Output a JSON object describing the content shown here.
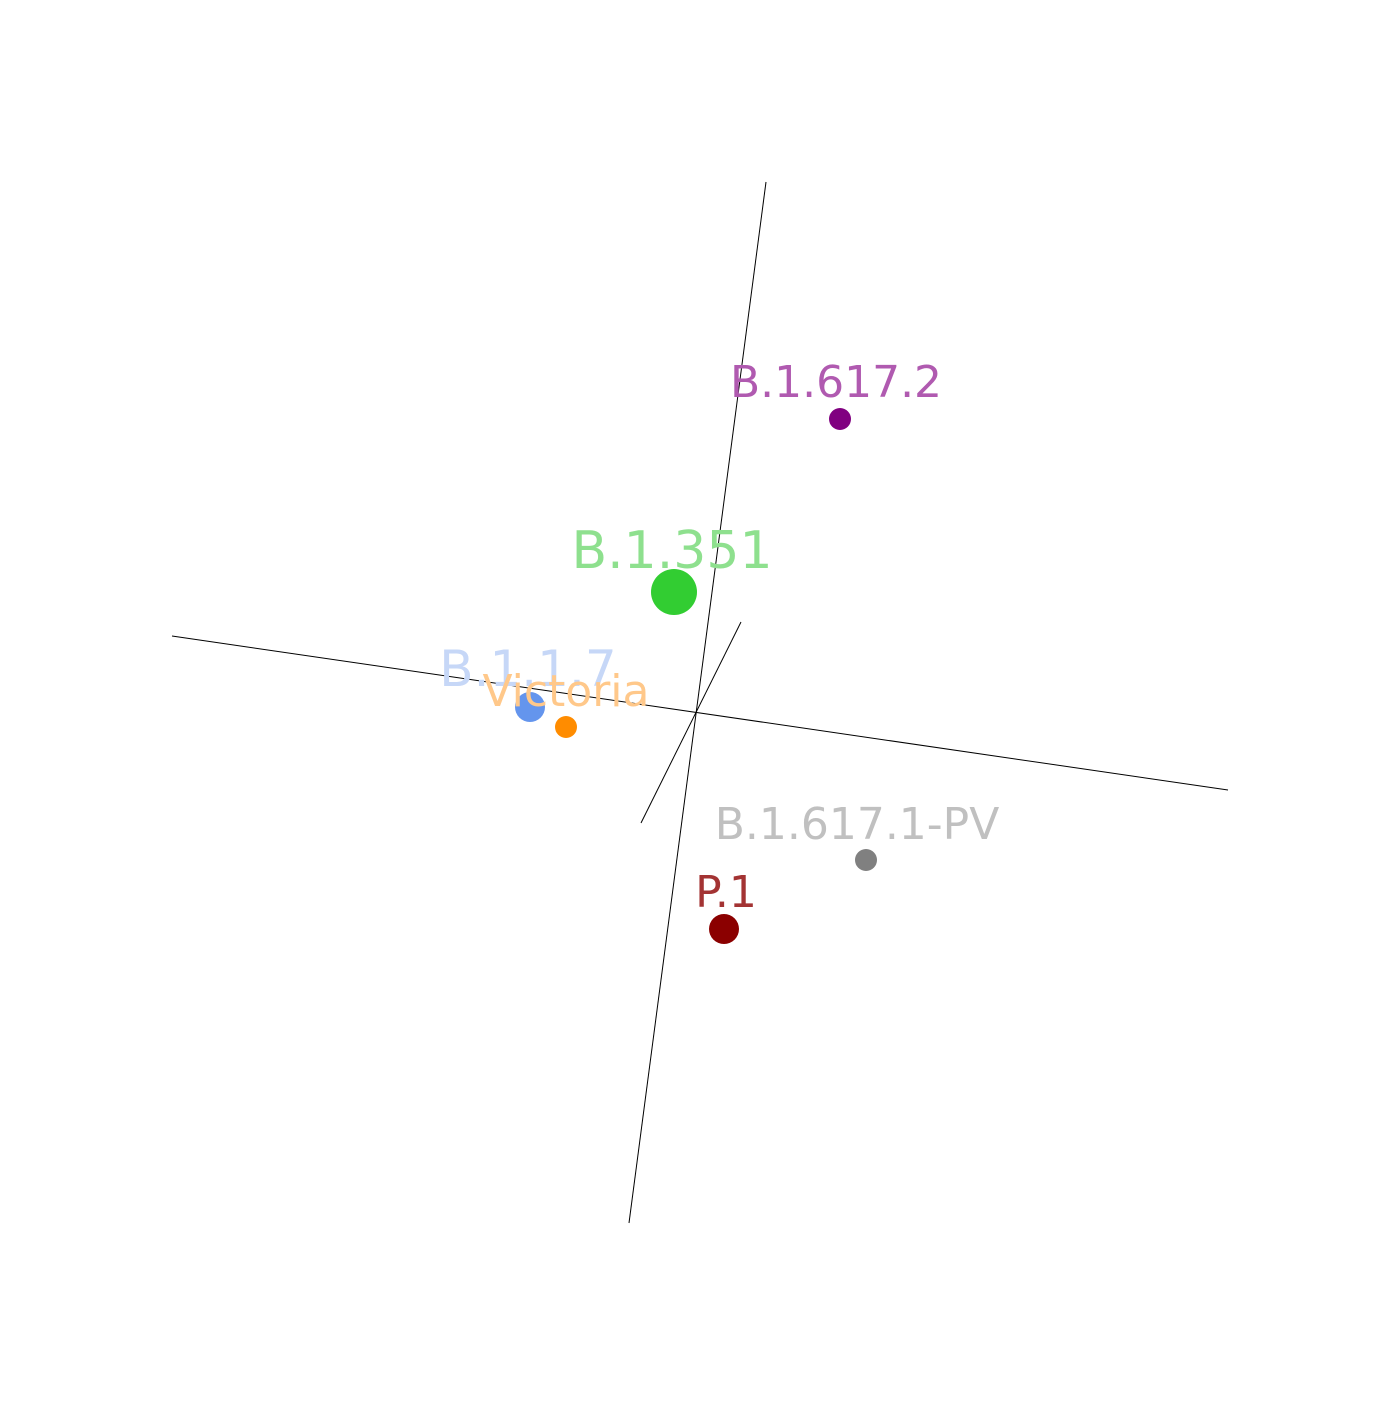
{
  "chart_data": {
    "type": "scatter",
    "dimensions": 3,
    "title": "",
    "axes": [
      "",
      "",
      ""
    ],
    "points": [
      {
        "label": "B.1.617.2",
        "point_color": "#800080",
        "label_color": "#b05ab0",
        "size": "small"
      },
      {
        "label": "B.1.351",
        "point_color": "#32cd32",
        "label_color": "#8ee08e",
        "size": "large"
      },
      {
        "label": "B.1.1.7",
        "point_color": "#6495ed",
        "label_color": "#c6d7f7",
        "size": "medium"
      },
      {
        "label": "Victoria",
        "point_color": "#ff8c00",
        "label_color": "#ffc88a",
        "size": "small"
      },
      {
        "label": "B.1.617.1-PV",
        "point_color": "#808080",
        "label_color": "#c0c0c0",
        "size": "small"
      },
      {
        "label": "P.1",
        "point_color": "#8b0000",
        "label_color": "#a33333",
        "size": "medium"
      }
    ]
  }
}
